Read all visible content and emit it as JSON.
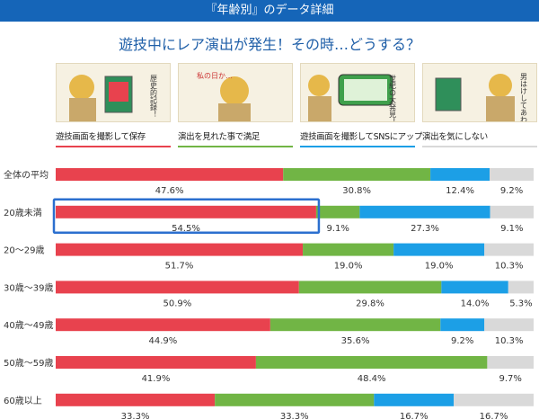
{
  "header": {
    "title": "『年齢別』のデータ詳細"
  },
  "question": "遊技中にレア演出が発生！その時…どうする？",
  "colors": {
    "red": "#e8424e",
    "green": "#71b545",
    "blue": "#1c9fe6",
    "gray": "#d9d9d9",
    "highlight": "#2b6fcf"
  },
  "legend": [
    {
      "label": "遊技画面を撮影して保存",
      "color": "#e8424e",
      "caption": "歴史的記録！"
    },
    {
      "label": "演出を見れた事で満足",
      "color": "#71b545",
      "caption": "私の日か…"
    },
    {
      "label": "遊技画面を撮影してSNSにアップ",
      "color": "#1c9fe6",
      "caption": "世紀の大発見！"
    },
    {
      "label": "演出を気にしない",
      "color": "#d9d9d9",
      "caption": "男はけしてあわてぬ"
    }
  ],
  "chart_data": {
    "type": "bar",
    "orientation": "horizontal-stacked-100",
    "categories": [
      "全体の平均",
      "20歳未満",
      "20～29歳",
      "30歳～39歳",
      "40歳～49歳",
      "50歳～59歳",
      "60歳以上"
    ],
    "series": [
      {
        "name": "遊技画面を撮影して保存",
        "values": [
          47.6,
          54.5,
          51.7,
          50.9,
          44.9,
          41.9,
          33.3
        ]
      },
      {
        "name": "演出を見れた事で満足",
        "values": [
          30.8,
          9.1,
          19.0,
          29.8,
          35.6,
          48.4,
          33.3
        ]
      },
      {
        "name": "遊技画面を撮影してSNSにアップ",
        "values": [
          12.4,
          27.3,
          19.0,
          14.0,
          9.2,
          0,
          16.7
        ]
      },
      {
        "name": "演出を気にしない",
        "values": [
          9.2,
          9.1,
          10.3,
          5.3,
          10.3,
          9.7,
          16.7
        ]
      }
    ],
    "value_labels": [
      [
        "47.6%",
        "30.8%",
        "12.4%",
        "9.2%"
      ],
      [
        "54.5%",
        "9.1%",
        "27.3%",
        "9.1%"
      ],
      [
        "51.7%",
        "19.0%",
        "19.0%",
        "10.3%"
      ],
      [
        "50.9%",
        "29.8%",
        "14.0%",
        "5.3%"
      ],
      [
        "44.9%",
        "35.6%",
        "9.2%",
        "10.3%"
      ],
      [
        "41.9%",
        "48.4%",
        "",
        "9.7%"
      ],
      [
        "33.3%",
        "33.3%",
        "16.7%",
        "16.7%"
      ]
    ],
    "highlighted_category": "20歳未満",
    "xlim": [
      0,
      100
    ]
  }
}
